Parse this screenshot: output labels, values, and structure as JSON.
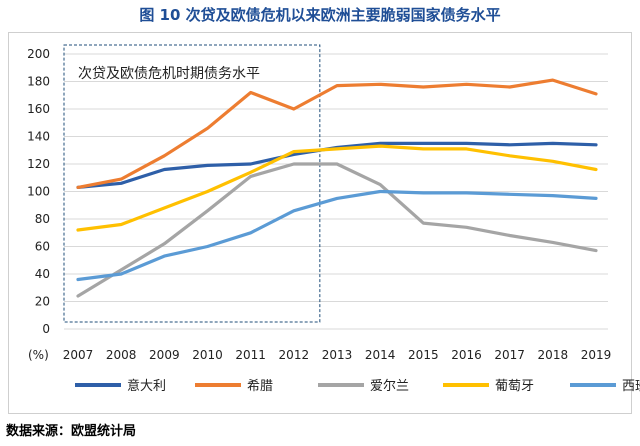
{
  "title": "图 10  次贷及欧债危机以来欧洲主要脆弱国家债务水平",
  "source": "数据来源：欧盟统计局",
  "chart_data": {
    "type": "line",
    "title": "图 10  次贷及欧债危机以来欧洲主要脆弱国家债务水平",
    "ylabel": "(%)",
    "xlabel": "",
    "ylim": [
      0,
      200
    ],
    "yticks": [
      0,
      20,
      40,
      60,
      80,
      100,
      120,
      140,
      160,
      180,
      200
    ],
    "categories": [
      "2007",
      "2008",
      "2009",
      "2010",
      "2011",
      "2012",
      "2013",
      "2014",
      "2015",
      "2016",
      "2017",
      "2018",
      "2019"
    ],
    "grid": true,
    "legend_position": "bottom",
    "annotation": {
      "text": "次贷及欧债危机时期债务水平",
      "from": "2007",
      "to": "2012"
    },
    "series": [
      {
        "name": "意大利",
        "color": "#2e5fa8",
        "values": [
          103,
          106,
          116,
          119,
          120,
          127,
          132,
          135,
          135,
          135,
          134,
          135,
          134
        ]
      },
      {
        "name": "希腊",
        "color": "#ed7d31",
        "values": [
          103,
          109,
          126,
          146,
          172,
          160,
          177,
          178,
          176,
          178,
          176,
          181,
          171
        ]
      },
      {
        "name": "爱尔兰",
        "color": "#a5a5a5",
        "values": [
          24,
          43,
          62,
          86,
          111,
          120,
          120,
          105,
          77,
          74,
          68,
          63,
          57
        ]
      },
      {
        "name": "葡萄牙",
        "color": "#ffc000",
        "values": [
          72,
          76,
          88,
          100,
          114,
          129,
          131,
          133,
          131,
          131,
          126,
          122,
          116
        ]
      },
      {
        "name": "西班牙",
        "color": "#5b9bd5",
        "values": [
          36,
          40,
          53,
          60,
          70,
          86,
          95,
          100,
          99,
          99,
          98,
          97,
          95
        ]
      }
    ]
  }
}
